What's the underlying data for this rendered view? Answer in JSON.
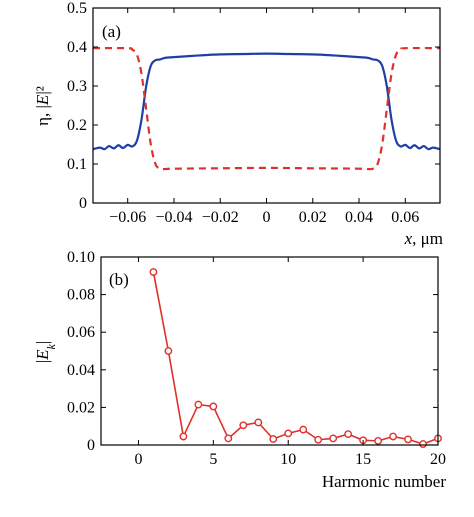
{
  "chart_data": [
    {
      "type": "line",
      "panel_label": "(a)",
      "ylabel": "η, |E|²",
      "xlabel": "x, μm",
      "xlim": [
        -0.075,
        0.075
      ],
      "ylim": [
        0,
        0.5
      ],
      "xticks": [
        -0.06,
        -0.04,
        -0.02,
        0,
        0.02,
        0.04,
        0.06
      ],
      "xtick_labels": [
        "−0.06",
        "−0.04",
        "−0.02",
        "0",
        "0.02",
        "0.04",
        "0.06"
      ],
      "yticks": [
        0,
        0.1,
        0.2,
        0.3,
        0.4,
        0.5
      ],
      "ytick_labels": [
        "0",
        "0.1",
        "0.2",
        "0.3",
        "0.4",
        "0.5"
      ],
      "grid": false,
      "series": [
        {
          "style": "solid",
          "color": "#1f3fa8",
          "x": [
            -0.075,
            -0.072,
            -0.07,
            -0.068,
            -0.066,
            -0.064,
            -0.062,
            -0.06,
            -0.058,
            -0.056,
            -0.054,
            -0.052,
            -0.05,
            -0.048,
            -0.046,
            -0.044,
            -0.04,
            -0.03,
            -0.02,
            -0.01,
            0,
            0.01,
            0.02,
            0.03,
            0.04,
            0.044,
            0.046,
            0.048,
            0.05,
            0.052,
            0.054,
            0.056,
            0.058,
            0.06,
            0.062,
            0.064,
            0.066,
            0.068,
            0.07,
            0.072,
            0.075
          ],
          "y": [
            0.138,
            0.142,
            0.138,
            0.146,
            0.14,
            0.148,
            0.141,
            0.149,
            0.145,
            0.16,
            0.215,
            0.3,
            0.352,
            0.366,
            0.368,
            0.372,
            0.374,
            0.378,
            0.381,
            0.382,
            0.383,
            0.382,
            0.381,
            0.378,
            0.374,
            0.372,
            0.368,
            0.366,
            0.352,
            0.3,
            0.215,
            0.16,
            0.145,
            0.149,
            0.141,
            0.148,
            0.14,
            0.146,
            0.138,
            0.142,
            0.138
          ]
        },
        {
          "style": "dashed",
          "color": "#e0302a",
          "x": [
            -0.075,
            -0.06,
            -0.058,
            -0.056,
            -0.054,
            -0.052,
            -0.05,
            -0.048,
            -0.046,
            -0.044,
            -0.04,
            -0.02,
            0,
            0.02,
            0.04,
            0.044,
            0.046,
            0.048,
            0.05,
            0.052,
            0.054,
            0.056,
            0.058,
            0.06,
            0.075
          ],
          "y": [
            0.397,
            0.397,
            0.393,
            0.38,
            0.33,
            0.24,
            0.15,
            0.1,
            0.088,
            0.087,
            0.088,
            0.089,
            0.09,
            0.089,
            0.088,
            0.087,
            0.088,
            0.1,
            0.15,
            0.24,
            0.33,
            0.38,
            0.393,
            0.397,
            0.397
          ]
        }
      ]
    },
    {
      "type": "line",
      "panel_label": "(b)",
      "ylabel": "|E_k|",
      "xlabel": "Harmonic number",
      "xlim": [
        -2.5,
        20
      ],
      "ylim": [
        0,
        0.1
      ],
      "xticks": [
        0,
        5,
        10,
        15,
        20
      ],
      "xtick_labels": [
        "0",
        "5",
        "10",
        "15",
        "20"
      ],
      "yticks": [
        0,
        0.02,
        0.04,
        0.06,
        0.08,
        0.1
      ],
      "ytick_labels": [
        "0",
        "0.02",
        "0.04",
        "0.06",
        "0.08",
        "0.10"
      ],
      "grid": false,
      "series": [
        {
          "style": "solid-markers",
          "color": "#e0302a",
          "x": [
            1,
            2,
            3,
            4,
            5,
            6,
            7,
            8,
            9,
            10,
            11,
            12,
            13,
            14,
            15,
            16,
            17,
            18,
            19,
            20
          ],
          "y": [
            0.092,
            0.05,
            0.0045,
            0.0215,
            0.0205,
            0.0035,
            0.0105,
            0.012,
            0.0032,
            0.0062,
            0.0082,
            0.0028,
            0.0035,
            0.0058,
            0.0025,
            0.0022,
            0.0045,
            0.003,
            0.0005,
            0.0035
          ]
        }
      ]
    }
  ]
}
